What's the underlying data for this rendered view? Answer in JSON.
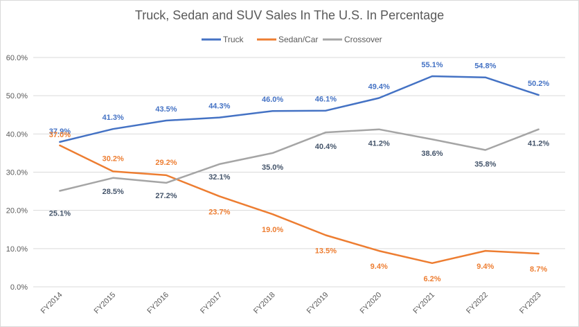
{
  "chart_data": {
    "type": "line",
    "title": "Truck, Sedan and SUV Sales In The U.S. In Percentage",
    "categories": [
      "FY2014",
      "FY2015",
      "FY2016",
      "FY2017",
      "FY2018",
      "FY2019",
      "FY2020",
      "FY2021",
      "FY2022",
      "FY2023"
    ],
    "series": [
      {
        "name": "Truck",
        "color": "#4472C4",
        "values": [
          37.9,
          41.3,
          43.5,
          44.3,
          46.0,
          46.1,
          49.4,
          55.1,
          54.8,
          50.2
        ],
        "labels": [
          "37.9%",
          "41.3%",
          "43.5%",
          "44.3%",
          "46.0%",
          "46.1%",
          "49.4%",
          "55.1%",
          "54.8%",
          "50.2%"
        ]
      },
      {
        "name": "Sedan/Car",
        "color": "#ED7D31",
        "values": [
          37.0,
          30.2,
          29.2,
          23.7,
          19.0,
          13.5,
          9.4,
          6.2,
          9.4,
          8.7
        ],
        "labels": [
          "37.0%",
          "30.2%",
          "29.2%",
          "23.7%",
          "19.0%",
          "13.5%",
          "9.4%",
          "6.2%",
          "9.4%",
          "8.7%"
        ]
      },
      {
        "name": "Crossover",
        "color": "#A5A5A5",
        "label_color": "#44546A",
        "values": [
          25.1,
          28.5,
          27.2,
          32.1,
          35.0,
          40.4,
          41.2,
          38.6,
          35.8,
          41.2
        ],
        "labels": [
          "25.1%",
          "28.5%",
          "27.2%",
          "32.1%",
          "35.0%",
          "40.4%",
          "41.2%",
          "38.6%",
          "35.8%",
          "41.2%"
        ]
      }
    ],
    "y_ticks": [
      "0.0%",
      "10.0%",
      "20.0%",
      "30.0%",
      "40.0%",
      "50.0%",
      "60.0%"
    ],
    "ylim": [
      0,
      60
    ],
    "grid": true,
    "legend_position": "top"
  }
}
